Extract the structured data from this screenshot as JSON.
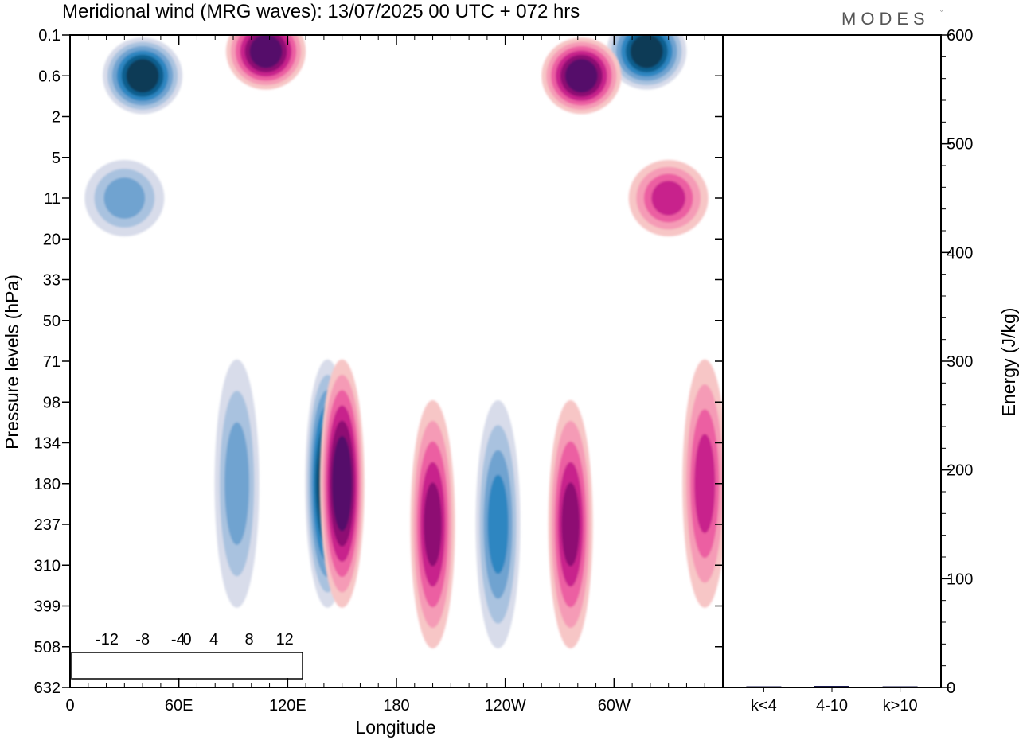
{
  "title": "Meridional wind (MRG waves):  13/07/2025  00 UTC  + 072 hrs",
  "logo": "MODES",
  "chart_data": [
    {
      "type": "heatmap",
      "title": "Meridional wind (MRG waves):  13/07/2025  00 UTC  + 072 hrs",
      "xlabel": "Longitude",
      "ylabel": "Pressure levels (hPa)",
      "x_ticks": [
        "0",
        "60E",
        "120E",
        "180",
        "120W",
        "60W"
      ],
      "x_tick_degrees": [
        0,
        60,
        120,
        180,
        240,
        300
      ],
      "x_range_degrees": [
        0,
        360
      ],
      "y_levels": [
        "0.1",
        "0.6",
        "2",
        "5",
        "11",
        "20",
        "33",
        "50",
        "71",
        "98",
        "134",
        "180",
        "237",
        "310",
        "399",
        "508",
        "632"
      ],
      "y_order": "0.1 at top, 632 at bottom",
      "colorbar": {
        "tick_labels": [
          "-12",
          "-8",
          "-4",
          "0",
          "4",
          "8",
          "12"
        ],
        "levels": [
          -14,
          -12,
          -10,
          -8,
          -6,
          -4,
          -2,
          2,
          4,
          6,
          8,
          10,
          12,
          14
        ],
        "colors": [
          "#0b3b57",
          "#0d5f8f",
          "#2e86c1",
          "#6fa3d0",
          "#a9c2df",
          "#d8dcea",
          "#ffffff",
          "#f7c6c6",
          "#f59bb6",
          "#ec5ea2",
          "#c8218c",
          "#8e1173",
          "#54076a"
        ]
      },
      "features": [
        {
          "sign": "negative",
          "lon": 40,
          "level": 0.6,
          "peak": -14
        },
        {
          "sign": "negative",
          "lon": 318,
          "level": 0.3,
          "peak": -14
        },
        {
          "sign": "negative",
          "lon": 30,
          "level": 11,
          "peak": -6
        },
        {
          "sign": "negative",
          "lon": 142,
          "level": 180,
          "peak": -14
        },
        {
          "sign": "negative",
          "lon": 92,
          "level": 180,
          "peak": -6
        },
        {
          "sign": "negative",
          "lon": 236,
          "level": 237,
          "peak": -8
        },
        {
          "sign": "positive",
          "lon": 108,
          "level": 0.3,
          "peak": 14
        },
        {
          "sign": "positive",
          "lon": 282,
          "level": 0.6,
          "peak": 14
        },
        {
          "sign": "positive",
          "lon": 150,
          "level": 180,
          "peak": 14
        },
        {
          "sign": "positive",
          "lon": 200,
          "level": 237,
          "peak": 10
        },
        {
          "sign": "positive",
          "lon": 276,
          "level": 237,
          "peak": 10
        },
        {
          "sign": "positive",
          "lon": 350,
          "level": 180,
          "peak": 8
        },
        {
          "sign": "positive",
          "lon": 330,
          "level": 11,
          "peak": 8
        }
      ]
    },
    {
      "type": "bar",
      "categories": [
        "k<4",
        "4-10",
        "k>10"
      ],
      "values": [
        0.3,
        1.5,
        0.2
      ],
      "ylabel": "Energy (J/kg)",
      "ylim": [
        0,
        600
      ],
      "y_ticks": [
        "0",
        "100",
        "200",
        "300",
        "400",
        "500",
        "600"
      ],
      "bar_color": "#1a1a4e"
    }
  ]
}
